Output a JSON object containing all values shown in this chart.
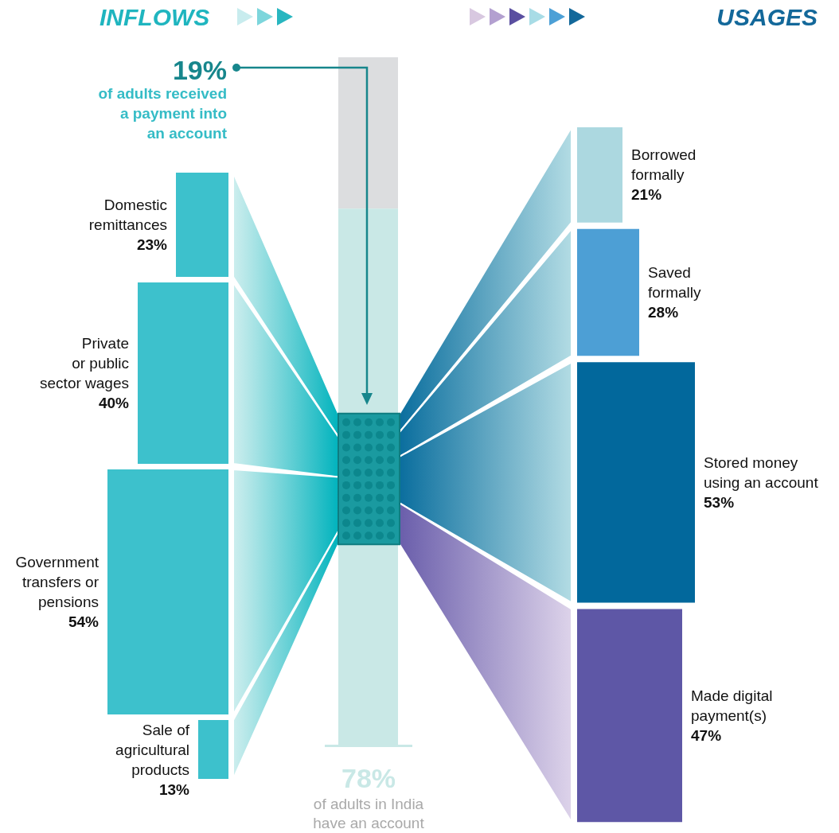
{
  "chart_data": [
    {
      "type": "other",
      "title": "INFLOWS",
      "categories": [
        "Domestic\nremittances",
        "Private\nor public\nsector wages",
        "Government\ntransfers or\npensions",
        "Sale of\nagricultural\nproducts"
      ],
      "values": [
        23,
        40,
        54,
        13
      ],
      "value_labels": [
        "23%",
        "40%",
        "54%",
        "13%"
      ],
      "color": "#3dc1cc"
    },
    {
      "type": "other",
      "categories": [
        "of adults received\na payment into\nan account",
        "of adults in India\nhave an account"
      ],
      "values": [
        19,
        78
      ],
      "value_labels": [
        "19%",
        "78%"
      ],
      "colors": [
        "#1a9aa0",
        "#c9e8e6"
      ]
    },
    {
      "type": "other",
      "title": "USAGES",
      "categories": [
        "Borrowed\nformally",
        "Saved\nformally",
        "Stored money\nusing an account",
        "Made digital\npayment(s)"
      ],
      "values": [
        21,
        28,
        53,
        47
      ],
      "value_labels": [
        "21%",
        "28%",
        "53%",
        "47%"
      ],
      "colors": [
        "#acd8e0",
        "#4d9fd5",
        "#02689c",
        "#5e57a6"
      ]
    }
  ]
}
